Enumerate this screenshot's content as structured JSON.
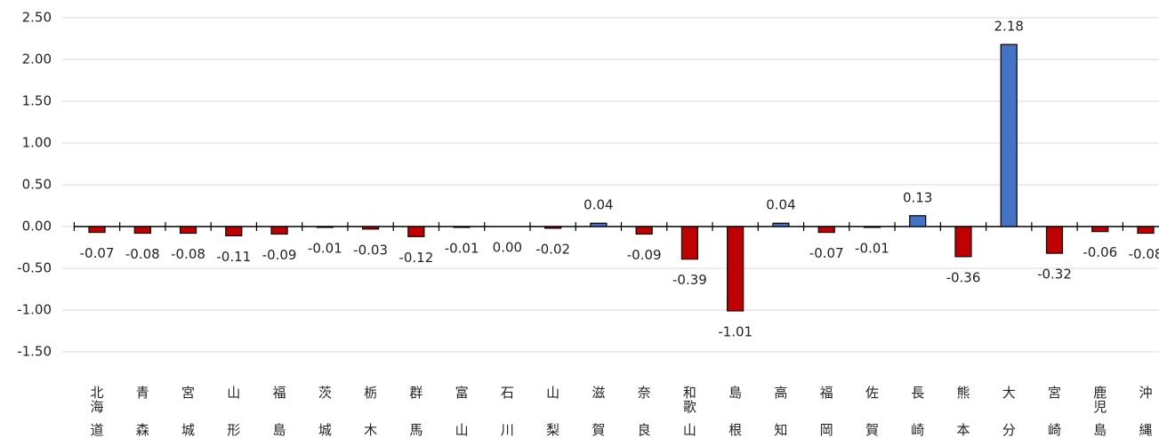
{
  "chart_data": {
    "type": "bar",
    "categories": [
      "北海道",
      "青森",
      "宮城",
      "山形",
      "福島",
      "茨城",
      "栃木",
      "群馬",
      "富山",
      "石川",
      "山梨",
      "滋賀",
      "奈良",
      "和歌山",
      "島根",
      "高知",
      "福岡",
      "佐賀",
      "長崎",
      "熊本",
      "大分",
      "宮崎",
      "鹿児島",
      "沖縄"
    ],
    "values": [
      -0.07,
      -0.08,
      -0.08,
      -0.11,
      -0.09,
      -0.01,
      -0.03,
      -0.12,
      -0.01,
      0.0,
      -0.02,
      0.04,
      -0.09,
      -0.39,
      -1.01,
      0.04,
      -0.07,
      -0.01,
      0.13,
      -0.36,
      2.18,
      -0.32,
      -0.06,
      -0.08
    ],
    "value_labels": [
      "-0.07",
      "-0.08",
      "-0.08",
      "-0.11",
      "-0.09",
      "-0.01",
      "-0.03",
      "-0.12",
      "-0.01",
      "0.00",
      "-0.02",
      "0.04",
      "-0.09",
      "-0.39",
      "-1.01",
      "0.04",
      "-0.07",
      "-0.01",
      "0.13",
      "-0.36",
      "2.18",
      "-0.32",
      "-0.06",
      "-0.08"
    ],
    "positive_color": "#4472c4",
    "negative_color": "#c00000",
    "ylim": [
      -1.5,
      2.5
    ],
    "yticks": [
      {
        "value": -1.5,
        "label": "-1.50"
      },
      {
        "value": -1,
        "label": "-1.00"
      },
      {
        "value": -0.5,
        "label": "-0.50"
      },
      {
        "value": 0,
        "label": "0.00"
      },
      {
        "value": 0.5,
        "label": "0.50"
      },
      {
        "value": 1,
        "label": "1.00"
      },
      {
        "value": 1.5,
        "label": "1.50"
      },
      {
        "value": 2,
        "label": "2.00"
      },
      {
        "value": 2.5,
        "label": "2.50"
      }
    ],
    "grid": true
  }
}
